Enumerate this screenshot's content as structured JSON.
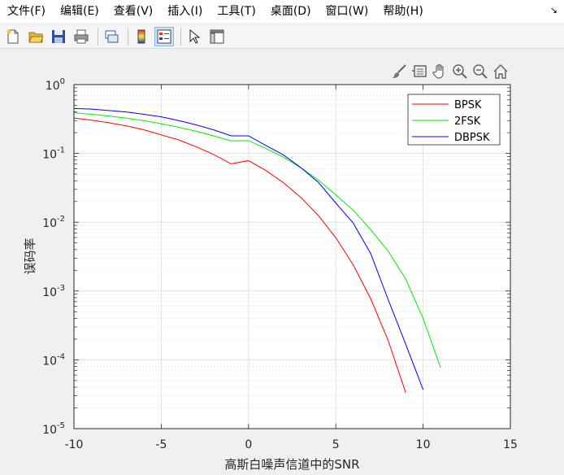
{
  "menu": {
    "items": [
      "文件(F)",
      "编辑(E)",
      "查看(V)",
      "插入(I)",
      "工具(T)",
      "桌面(D)",
      "窗口(W)",
      "帮助(H)"
    ],
    "overflow_icon": "dock-arrow-icon"
  },
  "toolbar": {
    "buttons": [
      "new-figure-icon",
      "open-file-icon",
      "save-icon",
      "print-icon",
      "link-plot-icon",
      "insert-colorbar-icon",
      "insert-legend-icon",
      "edit-plot-cursor-icon",
      "property-inspector-icon"
    ]
  },
  "axes_toolbar": {
    "buttons": [
      "brush-icon",
      "data-tips-icon",
      "pan-hand-icon",
      "zoom-in-icon",
      "zoom-out-icon",
      "home-icon"
    ]
  },
  "chart_data": {
    "type": "line",
    "xlabel": "高斯白噪声信道中的SNR",
    "ylabel": "误码率",
    "xlim": [
      -10,
      15
    ],
    "ylim": [
      1e-05,
      1
    ],
    "yscale": "log",
    "grid": true,
    "minor_grid": true,
    "x_ticks": [
      -10,
      -5,
      0,
      5,
      10,
      15
    ],
    "x_tick_labels": [
      "-10",
      "-5",
      "0",
      "5",
      "10",
      "15"
    ],
    "y_ticks": [
      1e-05,
      0.0001,
      0.001,
      0.01,
      0.1,
      1
    ],
    "y_tick_labels": [
      {
        "base": "10",
        "exp": "-5"
      },
      {
        "base": "10",
        "exp": "-4"
      },
      {
        "base": "10",
        "exp": "-3"
      },
      {
        "base": "10",
        "exp": "-2"
      },
      {
        "base": "10",
        "exp": "-1"
      },
      {
        "base": "10",
        "exp": "0"
      }
    ],
    "legend_position": "top-right",
    "series": [
      {
        "name": "BPSK",
        "color": "#ff0000",
        "x": [
          -10,
          -9,
          -8,
          -7,
          -6,
          -5,
          -4,
          -3,
          -2,
          -1,
          0,
          1,
          2,
          3,
          4,
          5,
          6,
          7,
          8,
          9
        ],
        "y": [
          0.327,
          0.304,
          0.279,
          0.251,
          0.221,
          0.186,
          0.157,
          0.125,
          0.0965,
          0.0706,
          0.0786,
          0.0563,
          0.0375,
          0.0229,
          0.0125,
          0.00595,
          0.00239,
          0.000773,
          0.000191,
          3.36e-05
        ]
      },
      {
        "name": "2FSK",
        "color": "#00ee00",
        "x": [
          -10,
          -9,
          -8,
          -7,
          -6,
          -5,
          -4,
          -3,
          -2,
          -1,
          0,
          1,
          2,
          3,
          4,
          5,
          6,
          7,
          8,
          9,
          10,
          11
        ],
        "y": [
          0.39,
          0.37,
          0.35,
          0.325,
          0.3,
          0.27,
          0.24,
          0.21,
          0.18,
          0.152,
          0.153,
          0.118,
          0.088,
          0.062,
          0.041,
          0.025,
          0.0149,
          0.0078,
          0.0038,
          0.0015,
          0.0004,
          7.7e-05
        ]
      },
      {
        "name": "DBPSK",
        "color": "#0000ff",
        "x": [
          -10,
          -9,
          -8,
          -7,
          -6,
          -5,
          -4,
          -3,
          -2,
          -1,
          0,
          1,
          2,
          3,
          4,
          5,
          6,
          7,
          8,
          9,
          10
        ],
        "y": [
          0.45,
          0.44,
          0.42,
          0.4,
          0.37,
          0.34,
          0.3,
          0.26,
          0.22,
          0.18,
          0.18,
          0.13,
          0.095,
          0.062,
          0.038,
          0.019,
          0.0097,
          0.0035,
          0.00075,
          0.00017,
          3.7e-05
        ]
      }
    ]
  }
}
